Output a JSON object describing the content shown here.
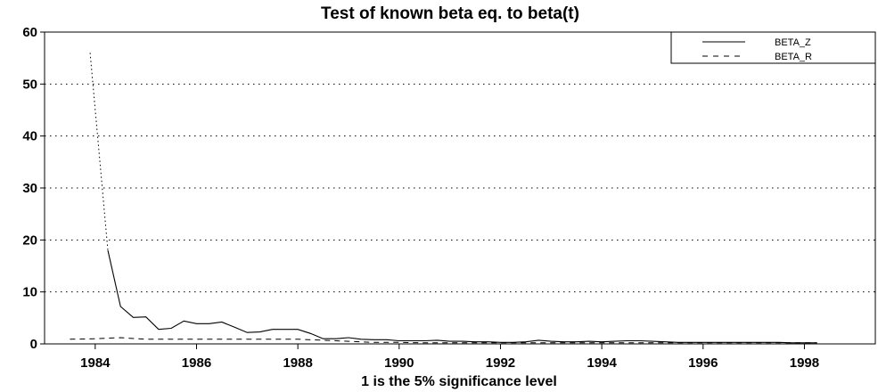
{
  "chart_data": {
    "type": "line",
    "title": "Test of known beta eq. to beta(t)",
    "xlabel": "1 is the 5% significance level",
    "ylabel": "",
    "xlim": [
      1983.0,
      1999.4
    ],
    "ylim": [
      0,
      60
    ],
    "xticks": [
      1984,
      1986,
      1988,
      1990,
      1992,
      1994,
      1996,
      1998
    ],
    "xtick_labels": [
      "1984",
      "1986",
      "1988",
      "1990",
      "1992",
      "1994",
      "1996",
      "1998"
    ],
    "yticks": [
      0,
      10,
      20,
      30,
      40,
      50,
      60
    ],
    "ytick_labels": [
      "0",
      "10",
      "20",
      "30",
      "40",
      "50",
      "60"
    ],
    "grid": "horizontal dotted",
    "legend_position": "top-right",
    "series": [
      {
        "name": "BETA_Z",
        "style": "solid",
        "points": [
          [
            1984.25,
            18.0
          ],
          [
            1984.5,
            7.2
          ],
          [
            1984.75,
            5.1
          ],
          [
            1985.0,
            5.2
          ],
          [
            1985.25,
            2.8
          ],
          [
            1985.5,
            3.0
          ],
          [
            1985.75,
            4.4
          ],
          [
            1986.0,
            3.9
          ],
          [
            1986.25,
            3.9
          ],
          [
            1986.5,
            4.2
          ],
          [
            1986.75,
            3.2
          ],
          [
            1987.0,
            2.2
          ],
          [
            1987.25,
            2.3
          ],
          [
            1987.5,
            2.8
          ],
          [
            1987.75,
            2.8
          ],
          [
            1988.0,
            2.8
          ],
          [
            1988.25,
            2.0
          ],
          [
            1988.5,
            1.0
          ],
          [
            1988.75,
            1.0
          ],
          [
            1989.0,
            1.2
          ],
          [
            1989.25,
            0.9
          ],
          [
            1989.5,
            0.8
          ],
          [
            1989.75,
            0.8
          ],
          [
            1990.0,
            0.6
          ],
          [
            1990.25,
            0.6
          ],
          [
            1990.5,
            0.6
          ],
          [
            1990.75,
            0.7
          ],
          [
            1991.0,
            0.5
          ],
          [
            1991.25,
            0.5
          ],
          [
            1991.5,
            0.4
          ],
          [
            1991.75,
            0.4
          ],
          [
            1992.0,
            0.3
          ],
          [
            1992.25,
            0.3
          ],
          [
            1992.5,
            0.4
          ],
          [
            1992.75,
            0.7
          ],
          [
            1993.0,
            0.5
          ],
          [
            1993.25,
            0.4
          ],
          [
            1993.5,
            0.4
          ],
          [
            1993.75,
            0.5
          ],
          [
            1994.0,
            0.4
          ],
          [
            1994.25,
            0.5
          ],
          [
            1994.5,
            0.6
          ],
          [
            1994.75,
            0.6
          ],
          [
            1995.0,
            0.5
          ],
          [
            1995.25,
            0.4
          ],
          [
            1995.5,
            0.3
          ],
          [
            1995.75,
            0.3
          ],
          [
            1996.0,
            0.3
          ],
          [
            1996.25,
            0.3
          ],
          [
            1996.5,
            0.3
          ],
          [
            1996.75,
            0.3
          ],
          [
            1997.0,
            0.3
          ],
          [
            1997.25,
            0.3
          ],
          [
            1997.5,
            0.3
          ],
          [
            1997.75,
            0.2
          ],
          [
            1998.0,
            0.2
          ],
          [
            1998.25,
            0.2
          ]
        ]
      },
      {
        "name": "BETA_R",
        "style": "dashed",
        "points": [
          [
            1983.5,
            0.9
          ],
          [
            1984.0,
            1.0
          ],
          [
            1984.5,
            1.2
          ],
          [
            1985.0,
            0.9
          ],
          [
            1985.5,
            0.9
          ],
          [
            1986.0,
            0.9
          ],
          [
            1986.5,
            0.9
          ],
          [
            1987.0,
            0.9
          ],
          [
            1987.5,
            0.9
          ],
          [
            1988.0,
            0.9
          ],
          [
            1988.5,
            0.7
          ],
          [
            1989.0,
            0.5
          ],
          [
            1989.5,
            0.3
          ],
          [
            1990.0,
            0.3
          ],
          [
            1990.5,
            0.2
          ],
          [
            1991.0,
            0.2
          ],
          [
            1991.5,
            0.2
          ],
          [
            1992.0,
            0.2
          ],
          [
            1993.0,
            0.2
          ],
          [
            1994.0,
            0.2
          ],
          [
            1995.0,
            0.2
          ],
          [
            1996.0,
            0.2
          ],
          [
            1997.0,
            0.2
          ],
          [
            1998.25,
            0.2
          ]
        ]
      },
      {
        "name": "",
        "style": "dotted",
        "points": [
          [
            1983.9,
            56.0
          ],
          [
            1984.25,
            18.0
          ]
        ]
      }
    ]
  }
}
